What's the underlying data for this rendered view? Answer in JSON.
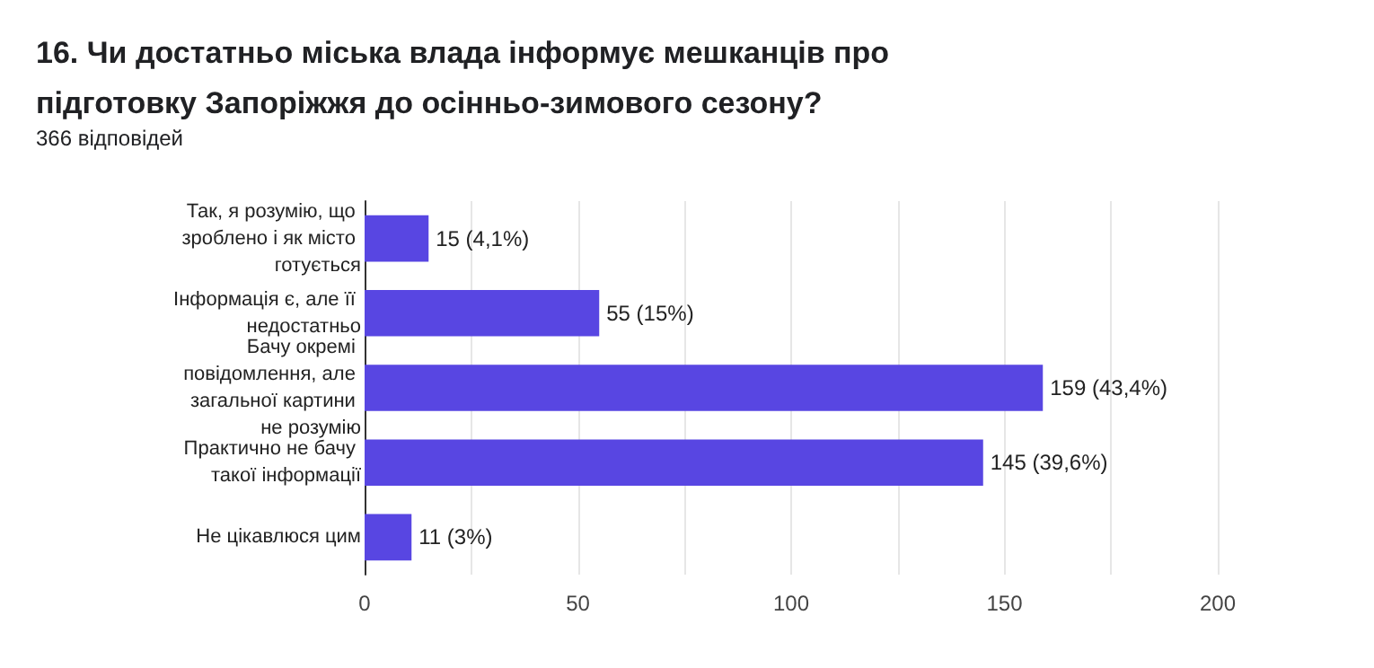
{
  "chart_data": {
    "type": "bar",
    "orientation": "horizontal",
    "title": "16. Чи достатньо міська влада інформує мешканців про підготовку Запоріжжя до осінньо-зимового сезону?",
    "subtitle": "366 відповідей",
    "categories": [
      "Так, я розумію, що зроблено і як місто готується",
      "Інформація є, але її недостатньо",
      "Бачу окремі повідомлення, але загальної картини не розумію",
      "Практично не бачу такої інформації",
      "Не цікавлюся цим"
    ],
    "values": [
      15,
      55,
      159,
      145,
      11
    ],
    "value_labels": [
      "15 (4,1%)",
      "55 (15%)",
      "159 (43,4%)",
      "145 (39,6%)",
      "11 (3%)"
    ],
    "color": "#5846e2",
    "xlim": [
      0,
      200
    ],
    "xticks": [
      0,
      {
        "value": 25,
        "label": null
      },
      50,
      {
        "value": 75,
        "label": null
      },
      100,
      {
        "value": 125,
        "label": null
      },
      150,
      {
        "value": 175,
        "label": null
      },
      200
    ],
    "grid": "x"
  }
}
